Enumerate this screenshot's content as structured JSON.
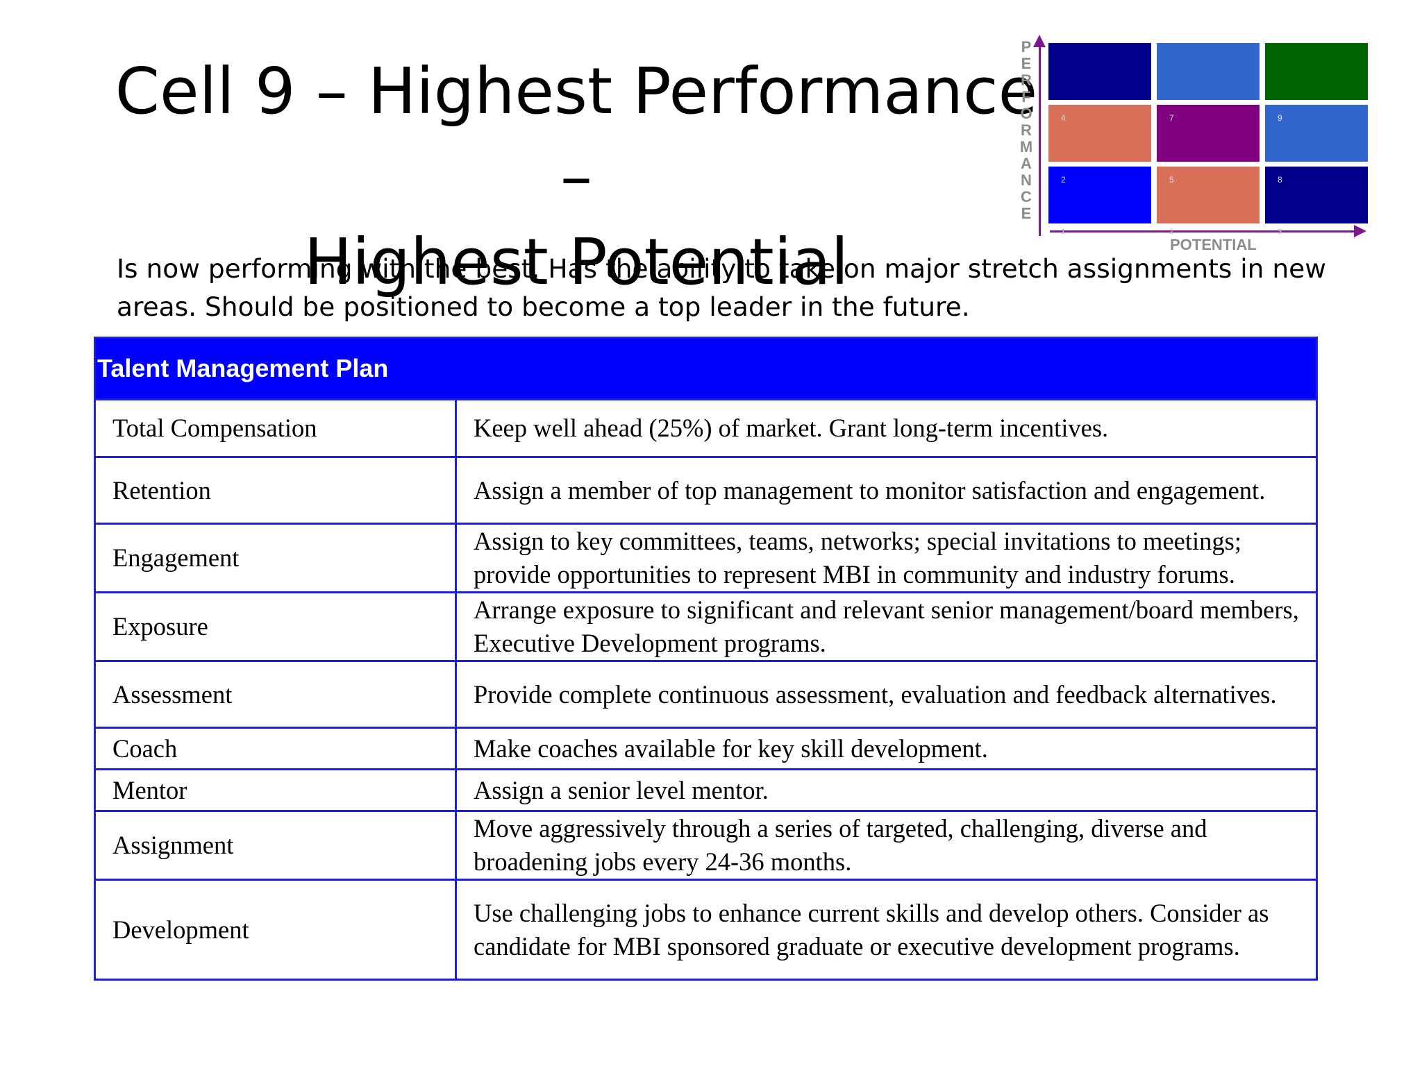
{
  "title": {
    "line1": "Cell 9 – Highest Performance –",
    "line2": "Highest Potential"
  },
  "description": "Is now performing with the best. Has the ability to take on major stretch assignments in new areas. Should be positioned to become a top leader in the future.",
  "grid": {
    "y_label_letters": [
      "P",
      "E",
      "R",
      "F",
      "O",
      "R",
      "M",
      "A",
      "N",
      "C",
      "E"
    ],
    "x_label": "POTENTIAL",
    "x_ticks": [
      "1",
      "2",
      "3"
    ],
    "cells": [
      {
        "number": "",
        "color": "#00008b"
      },
      {
        "number": "",
        "color": "#3366cc"
      },
      {
        "number": "",
        "color": "#006400"
      },
      {
        "number": "4",
        "color": "#d9705a"
      },
      {
        "number": "7",
        "color": "#800080"
      },
      {
        "number": "9",
        "color": "#3366cc"
      },
      {
        "number": "2",
        "color": "#0000ff"
      },
      {
        "number": "5",
        "color": "#d9705a"
      },
      {
        "number": "8",
        "color": "#00008b"
      }
    ]
  },
  "table": {
    "header": "Talent Management Plan",
    "rows": [
      {
        "label": "Total Compensation",
        "value": "Keep well ahead (25%) of market.  Grant long-term incentives."
      },
      {
        "label": "Retention",
        "value": "Assign a member of top management to monitor satisfaction and engagement."
      },
      {
        "label": "Engagement",
        "value": "Assign to key committees, teams, networks; special invitations to meetings; provide opportunities to represent MBI in community and industry forums."
      },
      {
        "label": "Exposure",
        "value": "Arrange exposure to significant and relevant senior management/board members, Executive Development programs."
      },
      {
        "label": "Assessment",
        "value": "Provide complete continuous assessment, evaluation and feedback alternatives."
      },
      {
        "label": "Coach",
        "value": "Make coaches available for key skill development."
      },
      {
        "label": "Mentor",
        "value": "Assign a senior level mentor."
      },
      {
        "label": "Assignment",
        "value": "Move aggressively through a series of targeted, challenging, diverse and broadening jobs every 24-36 months."
      },
      {
        "label": "Development",
        "value": "Use challenging jobs to enhance current skills and develop others. Consider as candidate for MBI sponsored graduate or executive development programs."
      }
    ]
  }
}
